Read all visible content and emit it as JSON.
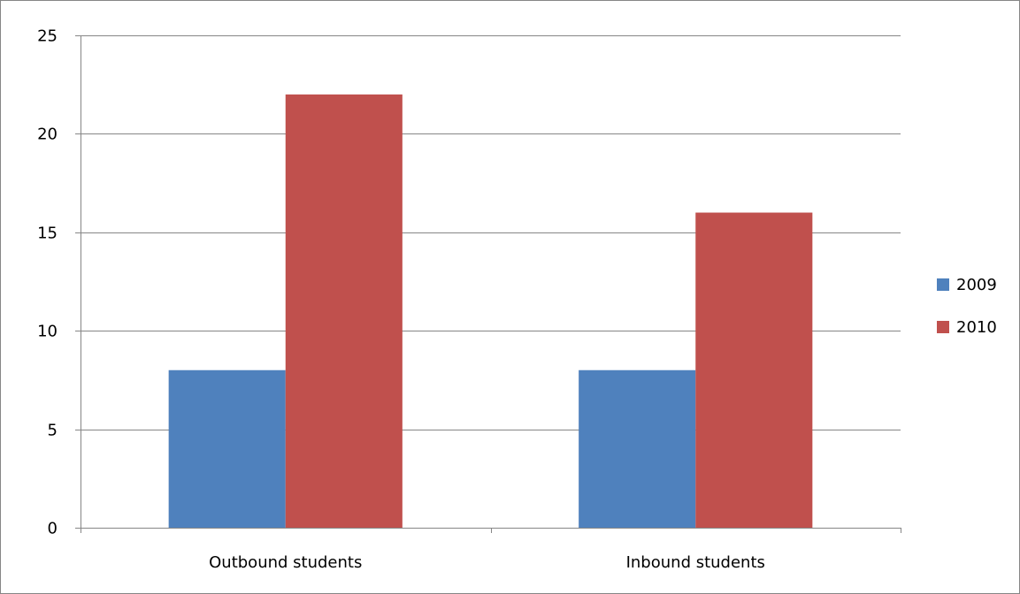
{
  "chart_data": {
    "type": "bar",
    "categories": [
      "Outbound students",
      "Inbound students"
    ],
    "series": [
      {
        "name": "2009",
        "values": [
          8,
          8
        ],
        "color": "#4F81BD"
      },
      {
        "name": "2010",
        "values": [
          22,
          16
        ],
        "color": "#C0504D"
      }
    ],
    "ylim": [
      0,
      25
    ],
    "yticks": [
      0,
      5,
      10,
      15,
      20,
      25
    ],
    "grid": true,
    "legend": "right",
    "gridline_color": "#868686"
  }
}
